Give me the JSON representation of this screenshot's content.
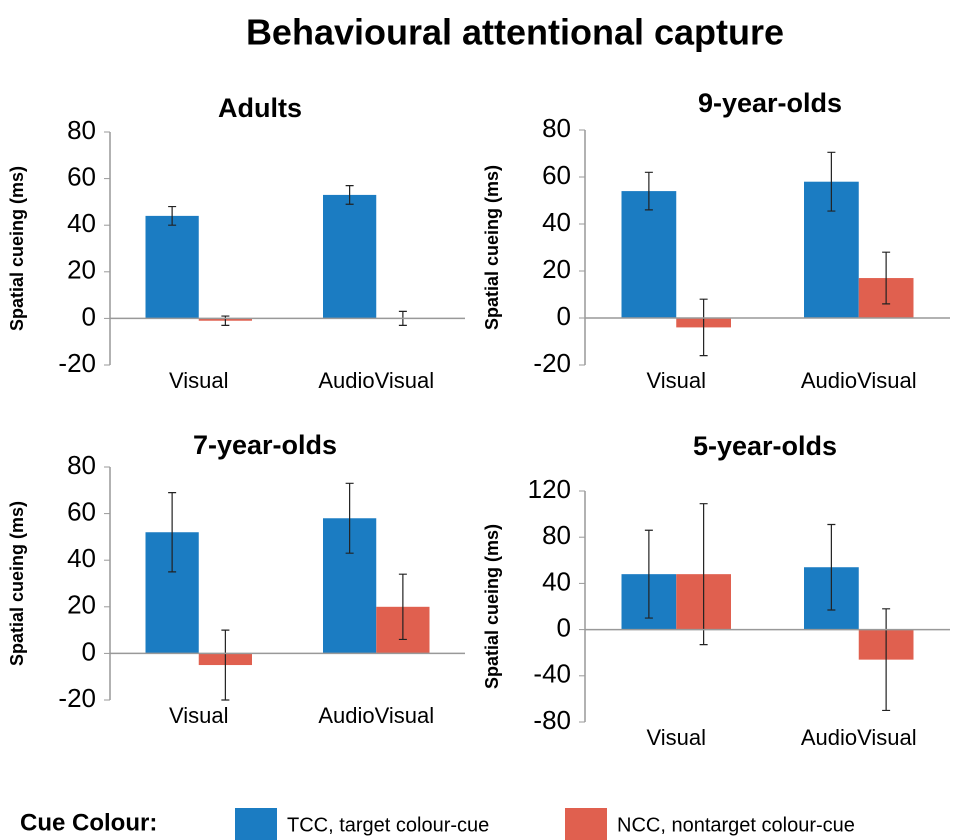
{
  "title": "Behavioural attentional capture",
  "legend": {
    "title": "Cue Colour:",
    "entries": [
      {
        "name": "TCC, target colour-cue",
        "color": "#1b7cc2"
      },
      {
        "name": "NCC, nontarget colour-cue",
        "color": "#e0604f"
      }
    ]
  },
  "chart_data": [
    {
      "type": "bar",
      "title": "Adults",
      "y_label": "Spatial cueing (ms)",
      "categories": [
        "Visual",
        "AudioVisual"
      ],
      "series": [
        {
          "color": "#1b7cc2",
          "values": [
            44,
            53
          ],
          "errors": [
            4,
            4
          ]
        },
        {
          "color": "#e0604f",
          "values": [
            -1,
            0
          ],
          "errors": [
            2,
            3
          ]
        }
      ],
      "ylim": [
        -20,
        80
      ],
      "yticks": [
        -20,
        0,
        20,
        40,
        60,
        80
      ]
    },
    {
      "type": "bar",
      "title": "9-year-olds",
      "y_label": "Spatial cueing (ms)",
      "categories": [
        "Visual",
        "AudioVisual"
      ],
      "series": [
        {
          "color": "#1b7cc2",
          "values": [
            54,
            58
          ],
          "errors": [
            8,
            12.5
          ]
        },
        {
          "color": "#e0604f",
          "values": [
            -4,
            17
          ],
          "errors": [
            12,
            11
          ]
        }
      ],
      "ylim": [
        -20,
        80
      ],
      "yticks": [
        -20,
        0,
        20,
        40,
        60,
        80
      ]
    },
    {
      "type": "bar",
      "title": "7-year-olds",
      "y_label": "Spatial cueing (ms)",
      "categories": [
        "Visual",
        "AudioVisual"
      ],
      "series": [
        {
          "color": "#1b7cc2",
          "values": [
            52,
            58
          ],
          "errors": [
            17,
            15
          ]
        },
        {
          "color": "#e0604f",
          "values": [
            -5,
            20
          ],
          "errors": [
            15,
            14
          ]
        }
      ],
      "ylim": [
        -20,
        80
      ],
      "yticks": [
        -20,
        0,
        20,
        40,
        60,
        80
      ]
    },
    {
      "type": "bar",
      "title": "5-year-olds",
      "y_label": "Spatial cueing (ms)",
      "categories": [
        "Visual",
        "AudioVisual"
      ],
      "series": [
        {
          "color": "#1b7cc2",
          "values": [
            48,
            54
          ],
          "errors": [
            38,
            37
          ]
        },
        {
          "color": "#e0604f",
          "values": [
            48,
            -26
          ],
          "errors": [
            61,
            44
          ]
        }
      ],
      "ylim": [
        -80,
        120
      ],
      "yticks": [
        -80,
        -40,
        0,
        40,
        80,
        120
      ]
    }
  ]
}
